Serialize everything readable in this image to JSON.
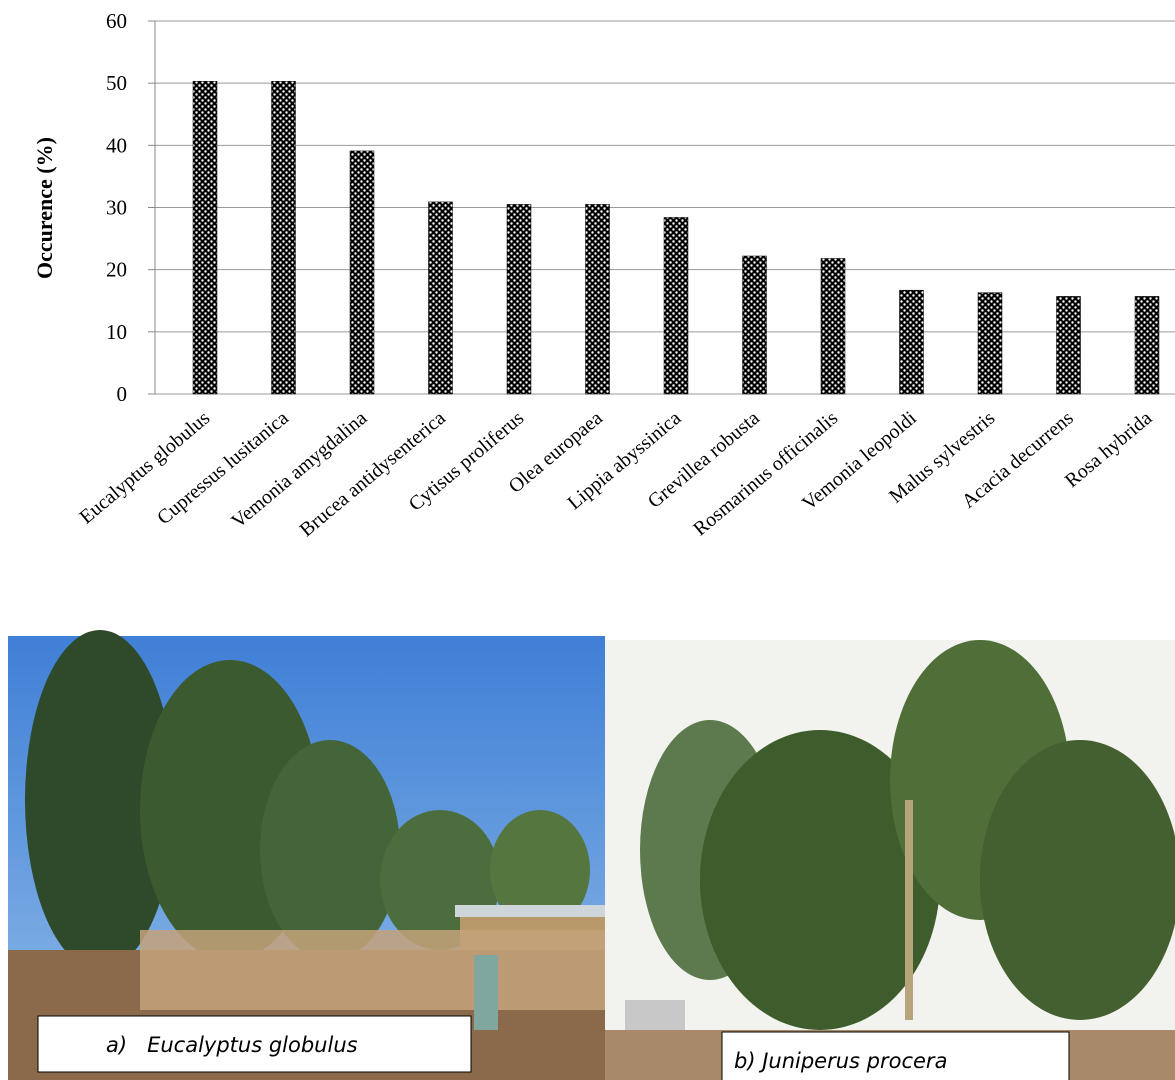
{
  "chart_data": {
    "type": "bar",
    "y_label": "Occurence (%)",
    "categories": [
      "Eucalyptus globulus",
      "Cupressus lusitanica",
      "Vemonia amygdalina",
      "Brucea antidysenterica",
      "Cytisus proliferus",
      "Olea europaea",
      "Lippia abyssinica",
      "Grevillea robusta",
      "Rosmarinus officinalis",
      "Vemonia leopoldi",
      "Malus sylvestris",
      "Acacia decurrens",
      "Rosa hybrida"
    ],
    "values": [
      50.3,
      50.3,
      39.1,
      30.9,
      30.5,
      30.5,
      28.4,
      22.2,
      21.8,
      16.7,
      16.3,
      15.7,
      15.7
    ],
    "color": "#000000",
    "ylim": [
      0,
      60
    ],
    "yticks": [
      0,
      10,
      20,
      30,
      40,
      50,
      60
    ],
    "grid": true
  },
  "photos": [
    {
      "caption": "a)   Eucalyptus globulus"
    },
    {
      "caption": "b) Juniperus procera"
    }
  ]
}
